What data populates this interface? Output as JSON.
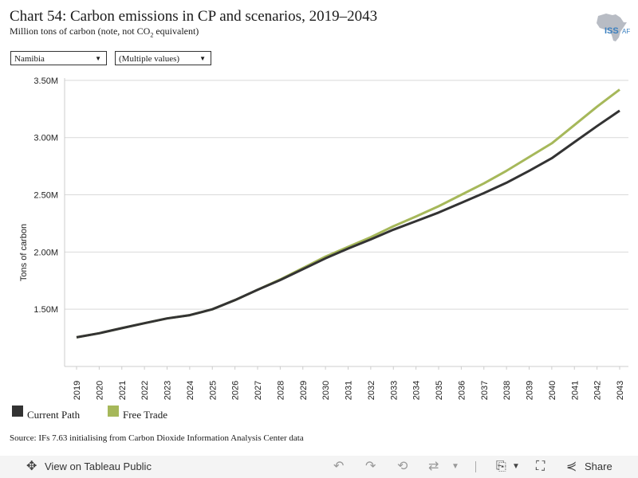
{
  "header": {
    "title": "Chart 54: Carbon emissions in CP and scenarios, 2019–2043",
    "subtitle_prefix": "Million tons of carbon (note, not CO",
    "subtitle_sub": "2",
    "subtitle_suffix": " equivalent)",
    "logo_text_main": "ISS",
    "logo_text_suffix": "AF"
  },
  "filters": {
    "country": "Namibia",
    "scenario": "(Multiple values)"
  },
  "chart_data": {
    "type": "line",
    "ylabel": "Tons of carbon",
    "xlabel": "",
    "x": [
      "2019",
      "2020",
      "2021",
      "2022",
      "2023",
      "2024",
      "2025",
      "2026",
      "2027",
      "2028",
      "2029",
      "2030",
      "2031",
      "2032",
      "2033",
      "2034",
      "2035",
      "2036",
      "2037",
      "2038",
      "2039",
      "2040",
      "2041",
      "2042",
      "2043"
    ],
    "ylim": [
      1000000,
      3520000
    ],
    "yticks": [
      1500000,
      2000000,
      2500000,
      3000000,
      3500000
    ],
    "ytick_labels": [
      "1.50M",
      "2.00M",
      "2.50M",
      "3.00M",
      "3.50M"
    ],
    "grid": true,
    "legend": "bottom-left",
    "series": [
      {
        "name": "Current Path",
        "color": "#333333",
        "values": [
          1255000,
          1290000,
          1335000,
          1378000,
          1420000,
          1448000,
          1500000,
          1580000,
          1670000,
          1755000,
          1850000,
          1945000,
          2030000,
          2110000,
          2195000,
          2270000,
          2345000,
          2430000,
          2515000,
          2605000,
          2710000,
          2820000,
          2960000,
          3100000,
          3235000
        ]
      },
      {
        "name": "Free Trade",
        "color": "#a6b85a",
        "values": [
          1255000,
          1290000,
          1335000,
          1378000,
          1420000,
          1448000,
          1500000,
          1580000,
          1670000,
          1760000,
          1860000,
          1960000,
          2045000,
          2130000,
          2225000,
          2310000,
          2400000,
          2500000,
          2600000,
          2710000,
          2830000,
          2950000,
          3110000,
          3270000,
          3420000
        ]
      }
    ]
  },
  "source": "Source: IFs 7.63 initialising from Carbon Dioxide Information Analysis Center data",
  "toolbar": {
    "view_label": "View on Tableau Public",
    "share_label": "Share"
  }
}
